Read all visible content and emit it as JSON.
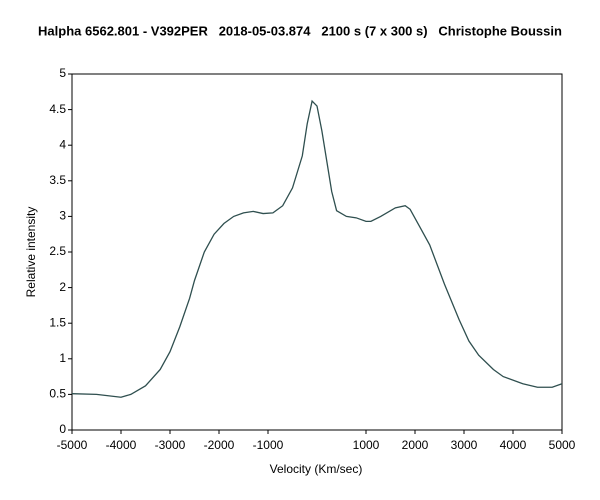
{
  "chart_data": {
    "type": "line",
    "title": "Halpha 6562.801 - V392PER   2018-05-03.874   2100 s (7 x 300 s)   Christophe Boussin",
    "x_label": "Velocity (Km/sec)",
    "y_label": "Relative intensity",
    "x": [
      -5000,
      -4500,
      -4000,
      -3800,
      -3500,
      -3200,
      -3000,
      -2800,
      -2600,
      -2500,
      -2300,
      -2100,
      -1900,
      -1700,
      -1500,
      -1300,
      -1100,
      -900,
      -700,
      -500,
      -300,
      -200,
      -100,
      0,
      100,
      300,
      400,
      600,
      800,
      1000,
      1100,
      1300,
      1600,
      1800,
      1900,
      2100,
      2300,
      2600,
      2900,
      3100,
      3300,
      3600,
      3800,
      4200,
      4500,
      4800,
      5000
    ],
    "series": [
      {
        "color": "#2f4f4f",
        "values": [
          0.51,
          0.5,
          0.46,
          0.5,
          0.62,
          0.85,
          1.1,
          1.45,
          1.85,
          2.1,
          2.5,
          2.75,
          2.9,
          3.0,
          3.05,
          3.07,
          3.04,
          3.05,
          3.15,
          3.4,
          3.85,
          4.3,
          4.62,
          4.55,
          4.2,
          3.35,
          3.08,
          3.0,
          2.98,
          2.93,
          2.93,
          3.0,
          3.12,
          3.15,
          3.1,
          2.85,
          2.6,
          2.05,
          1.55,
          1.25,
          1.05,
          0.85,
          0.75,
          0.65,
          0.6,
          0.6,
          0.65
        ]
      }
    ],
    "xlim": [
      -5000,
      5000
    ],
    "xticks": [
      -5000,
      -4000,
      -3000,
      -2000,
      -1000,
      1000,
      2000,
      3000,
      4000,
      5000
    ],
    "ylim": [
      0,
      5
    ],
    "yticks": [
      0,
      0.5,
      1,
      1.5,
      2,
      2.5,
      3,
      3.5,
      4,
      4.5,
      5
    ]
  }
}
